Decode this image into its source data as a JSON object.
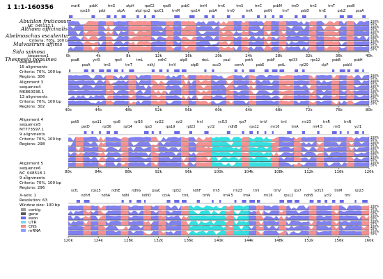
{
  "header": {
    "title": "1 1:1-160356"
  },
  "species": [
    "Abutilon fruticosum",
    "Althaea officinalis",
    "Abelmoschus esculentus",
    "Malvastrum affinis",
    "Sida spinosa",
    "Thespesia populnea"
  ],
  "overlay_texts": [
    "NC_045117.1",
    "Criteria: 70%, 100 bp",
    "sequence1"
  ],
  "alignments": [
    {
      "title": "Alignment 2",
      "sequence": "sequence3",
      "accession": "",
      "count": "15 alignments",
      "criteria": "Criteria: 70%, 100 bp",
      "regions": "Regions: 306"
    },
    {
      "title": "Alignment 3",
      "sequence": "sequence4",
      "accession": "MK860036.1",
      "count": "13 alignments",
      "criteria": "Criteria: 70%, 100 bp",
      "regions": "Regions: 302"
    },
    {
      "title": "Alignment 4",
      "sequence": "sequence5",
      "accession": "MT773597.1",
      "count": "9 alignments",
      "criteria": "Criteria: 70%, 100 bp",
      "regions": "Regions: 298"
    },
    {
      "title": "Alignment 5",
      "sequence": "sequence6",
      "accession": "NC_048518.1",
      "count": "9 alignments",
      "criteria": "Criteria: 70%, 100 bp",
      "regions": "Regions: 296"
    }
  ],
  "settings": {
    "xaxis": "X-axis: 1",
    "resolution": "Resolution: 63",
    "window": "Window size: 100 bp"
  },
  "legend": [
    {
      "label": "contig",
      "color": "#9e9e9e"
    },
    {
      "label": "gene",
      "color": "#5a5a5a"
    },
    {
      "label": "exon",
      "color": "#6a6ae8"
    },
    {
      "label": "UTR",
      "color": "#7ad4ef"
    },
    {
      "label": "CNS",
      "color": "#f08a8a"
    },
    {
      "label": "mRNA",
      "color": "#8aa0ff"
    }
  ],
  "colors": {
    "exon": "#8080ee",
    "cns": "#f49090",
    "utr": "#33dfe0",
    "fill": "#ffffff",
    "gene": "#6a6ae8"
  },
  "pct_labels": [
    "100%",
    "50%"
  ],
  "panels": [
    {
      "ticks": [
        "0k",
        "4k",
        "8k",
        "12k",
        "16k",
        "20k",
        "24k",
        "28k",
        "32k",
        "36k",
        "40k"
      ],
      "genes_top": [
        "matK",
        "rps16",
        "psbK",
        "psbI",
        "trnG",
        "atpA",
        "atpH",
        "atpI rps2",
        "rpoC2",
        "rpoC1",
        "rpoB",
        "trnM",
        "psbC",
        "rps14",
        "trnH",
        "psbA",
        "trnK",
        "trnQ",
        "trnS",
        "trnR",
        "trnC",
        "petN",
        "psbM",
        "trnY",
        "trnD",
        "psbD",
        "trnS",
        "trnE",
        "trnT",
        "psbZ",
        "psaB",
        "psaA"
      ],
      "pattern": [
        1,
        1,
        0,
        0,
        1,
        0,
        1,
        1,
        0,
        0,
        0,
        1,
        1,
        0,
        1,
        0,
        0,
        1,
        1,
        1,
        0,
        0,
        1,
        0,
        1,
        1,
        0,
        1,
        0,
        1,
        1,
        1,
        0,
        1,
        0,
        0,
        1,
        0,
        1,
        1
      ]
    },
    {
      "ticks": [
        "40k",
        "44k",
        "48k",
        "52k",
        "56k",
        "60k",
        "64k",
        "68k",
        "72k",
        "76k",
        "80k"
      ],
      "genes_top": [
        "psaB",
        "psaA",
        "ycf3",
        "trnS",
        "rps4",
        "trnT",
        "trnL",
        "ndhJ",
        "ndhC",
        "trnV",
        "atpE",
        "atpB",
        "rbcL",
        "accD",
        "psaI",
        "cemA",
        "petA",
        "psbE",
        "psbF",
        "petL",
        "rpl33",
        "rpl20",
        "rps12",
        "clpP",
        "psbB",
        "psbN",
        "psbH"
      ],
      "pattern": [
        1,
        1,
        1,
        1,
        1,
        0,
        1,
        1,
        0,
        1,
        1,
        0,
        0,
        1,
        1,
        0,
        1,
        0,
        0,
        1,
        1,
        0,
        1,
        1,
        0,
        1,
        1,
        1,
        0,
        0,
        1,
        1,
        0,
        1,
        1,
        0,
        1,
        0,
        1,
        1
      ]
    },
    {
      "ticks": [
        "80k",
        "84k",
        "88k",
        "92k",
        "96k",
        "100k",
        "104k",
        "108k",
        "112k",
        "116k",
        "120k"
      ],
      "genes_top": [
        "petB",
        "petD",
        "rps11",
        "rpl36",
        "rps8",
        "rpl14",
        "rpl16",
        "rps3",
        "rpl22",
        "rps19",
        "rpl2",
        "rpl23",
        "trnI",
        "ycf2",
        "ycf15",
        "ndhB",
        "rps7",
        "rps12",
        "trnV",
        "rrn16",
        "trnI",
        "trnA",
        "rrn23",
        "rrn4.5",
        "trnR",
        "rrn5",
        "trnN",
        "ycf1"
      ],
      "pattern": [
        1,
        0,
        1,
        1,
        0,
        1,
        1,
        0,
        1,
        1,
        1,
        0,
        1,
        1,
        1,
        0,
        1,
        0,
        0,
        2,
        2,
        2,
        2,
        0,
        2,
        2,
        2,
        0,
        1,
        1,
        0,
        1,
        1,
        0,
        1,
        1,
        1,
        0,
        1,
        1
      ]
    },
    {
      "ticks": [
        "120k",
        "124k",
        "128k",
        "132k",
        "136k",
        "140k",
        "144k",
        "148k",
        "152k",
        "156k",
        "160k"
      ],
      "genes_top": [
        "ycf1",
        "ndhH",
        "rps15",
        "ndhA",
        "ndhE",
        "ndhI",
        "ndhG",
        "ndhD",
        "psaC",
        "ccsA",
        "rpl32",
        "trnL",
        "ndhF",
        "trnN",
        "rrn5",
        "rrn4.5",
        "rrn23",
        "trnA",
        "trnI",
        "rrn16",
        "trnV",
        "rps12",
        "rps7",
        "ndhB",
        "ycf15",
        "ycf2",
        "trnM",
        "trnI",
        "rpl23"
      ],
      "pattern": [
        1,
        1,
        0,
        1,
        0,
        1,
        1,
        0,
        1,
        1,
        0,
        1,
        0,
        1,
        1,
        0,
        2,
        2,
        2,
        2,
        2,
        0,
        2,
        2,
        1,
        0,
        1,
        1,
        0,
        1,
        1,
        1,
        0,
        1,
        1,
        0,
        1,
        1,
        1,
        0
      ]
    }
  ]
}
